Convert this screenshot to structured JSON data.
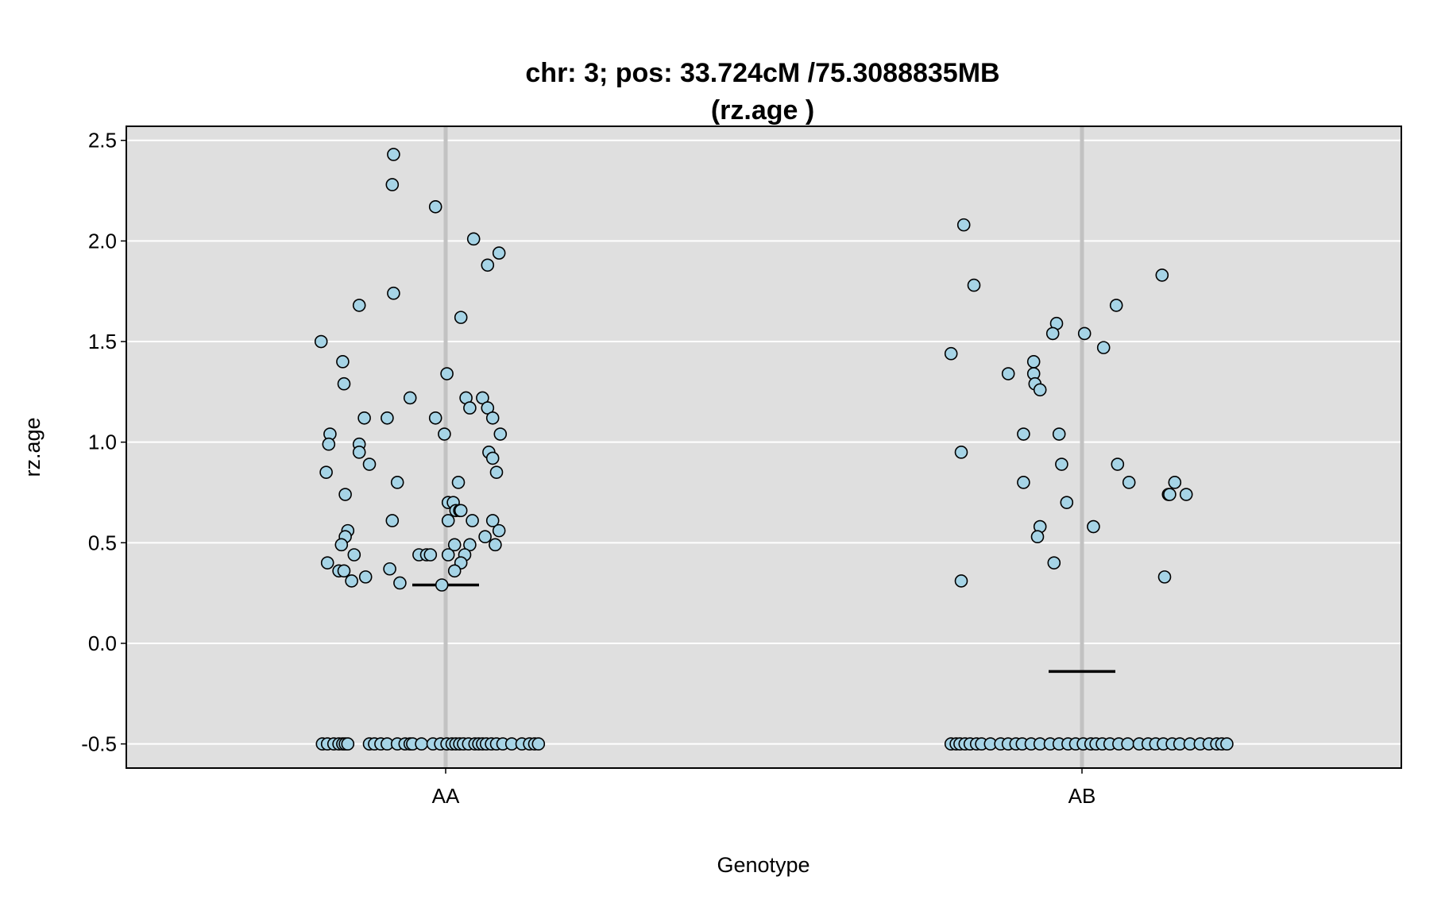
{
  "chart_data": {
    "type": "scatter",
    "title": "chr: 3; pos: 33.724cM /75.3088835MB",
    "subtitle": "(rz.age )",
    "xlabel": "Genotype",
    "ylabel": "rz.age",
    "categories": [
      "AA",
      "AB"
    ],
    "ylim": [
      -0.62,
      2.57
    ],
    "yticks": [
      -0.5,
      0.0,
      0.5,
      1.0,
      1.5,
      2.0,
      2.5
    ],
    "ytick_labels": [
      "-0.5",
      "0.0",
      "0.5",
      "1.0",
      "1.5",
      "2.0",
      "2.5"
    ],
    "grid": true,
    "colors": {
      "panel_background": "#dfdfdf",
      "gridline": "#ffffff",
      "category_line": "#c2c2c2",
      "point_fill": "#a6d4e6",
      "point_stroke": "#000000",
      "mean_line": "#000000"
    },
    "means": [
      0.29,
      -0.14
    ],
    "series": [
      {
        "category": "AA",
        "points": [
          [
            -0.41,
            2.43
          ],
          [
            -0.42,
            2.28
          ],
          [
            -0.08,
            2.17
          ],
          [
            0.22,
            2.01
          ],
          [
            0.42,
            1.94
          ],
          [
            0.33,
            1.88
          ],
          [
            -0.41,
            1.74
          ],
          [
            -0.68,
            1.68
          ],
          [
            0.12,
            1.62
          ],
          [
            -0.98,
            1.5
          ],
          [
            -0.81,
            1.4
          ],
          [
            0.01,
            1.34
          ],
          [
            -0.8,
            1.29
          ],
          [
            -0.28,
            1.22
          ],
          [
            0.16,
            1.22
          ],
          [
            0.29,
            1.22
          ],
          [
            0.33,
            1.17
          ],
          [
            0.19,
            1.17
          ],
          [
            -0.64,
            1.12
          ],
          [
            -0.46,
            1.12
          ],
          [
            -0.08,
            1.12
          ],
          [
            0.37,
            1.12
          ],
          [
            -0.91,
            1.04
          ],
          [
            -0.01,
            1.04
          ],
          [
            0.43,
            1.04
          ],
          [
            -0.92,
            0.99
          ],
          [
            -0.68,
            0.99
          ],
          [
            -0.68,
            0.95
          ],
          [
            0.34,
            0.95
          ],
          [
            0.37,
            0.92
          ],
          [
            -0.6,
            0.89
          ],
          [
            -0.94,
            0.85
          ],
          [
            0.4,
            0.85
          ],
          [
            -0.38,
            0.8
          ],
          [
            0.1,
            0.8
          ],
          [
            -0.79,
            0.74
          ],
          [
            0.02,
            0.7
          ],
          [
            0.06,
            0.7
          ],
          [
            0.08,
            0.66
          ],
          [
            0.11,
            0.66
          ],
          [
            0.12,
            0.66
          ],
          [
            -0.42,
            0.61
          ],
          [
            0.02,
            0.61
          ],
          [
            0.21,
            0.61
          ],
          [
            0.37,
            0.61
          ],
          [
            -0.77,
            0.56
          ],
          [
            0.42,
            0.56
          ],
          [
            -0.79,
            0.53
          ],
          [
            0.31,
            0.53
          ],
          [
            -0.82,
            0.49
          ],
          [
            0.07,
            0.49
          ],
          [
            0.19,
            0.49
          ],
          [
            0.39,
            0.49
          ],
          [
            -0.72,
            0.44
          ],
          [
            -0.21,
            0.44
          ],
          [
            -0.15,
            0.44
          ],
          [
            -0.12,
            0.44
          ],
          [
            0.02,
            0.44
          ],
          [
            0.15,
            0.44
          ],
          [
            -0.93,
            0.4
          ],
          [
            0.12,
            0.4
          ],
          [
            -0.44,
            0.37
          ],
          [
            -0.84,
            0.36
          ],
          [
            -0.8,
            0.36
          ],
          [
            0.07,
            0.36
          ],
          [
            -0.63,
            0.33
          ],
          [
            -0.74,
            0.31
          ],
          [
            -0.36,
            0.3
          ],
          [
            -0.03,
            0.29
          ],
          [
            -0.97,
            -0.5
          ],
          [
            -0.93,
            -0.5
          ],
          [
            -0.88,
            -0.5
          ],
          [
            -0.84,
            -0.5
          ],
          [
            -0.81,
            -0.5
          ],
          [
            -0.79,
            -0.5
          ],
          [
            -0.77,
            -0.5
          ],
          [
            -0.6,
            -0.5
          ],
          [
            -0.56,
            -0.5
          ],
          [
            -0.51,
            -0.5
          ],
          [
            -0.46,
            -0.5
          ],
          [
            -0.38,
            -0.5
          ],
          [
            -0.32,
            -0.5
          ],
          [
            -0.28,
            -0.5
          ],
          [
            -0.26,
            -0.5
          ],
          [
            -0.19,
            -0.5
          ],
          [
            -0.1,
            -0.5
          ],
          [
            -0.04,
            -0.5
          ],
          [
            0.01,
            -0.5
          ],
          [
            0.05,
            -0.5
          ],
          [
            0.08,
            -0.5
          ],
          [
            0.11,
            -0.5
          ],
          [
            0.14,
            -0.5
          ],
          [
            0.18,
            -0.5
          ],
          [
            0.23,
            -0.5
          ],
          [
            0.26,
            -0.5
          ],
          [
            0.29,
            -0.5
          ],
          [
            0.32,
            -0.5
          ],
          [
            0.36,
            -0.5
          ],
          [
            0.4,
            -0.5
          ],
          [
            0.45,
            -0.5
          ],
          [
            0.52,
            -0.5
          ],
          [
            0.6,
            -0.5
          ],
          [
            0.66,
            -0.5
          ],
          [
            0.7,
            -0.5
          ],
          [
            0.73,
            -0.5
          ]
        ]
      },
      {
        "category": "AB",
        "points": [
          [
            -0.93,
            2.08
          ],
          [
            -0.85,
            1.78
          ],
          [
            0.63,
            1.83
          ],
          [
            -0.2,
            1.59
          ],
          [
            -0.23,
            1.54
          ],
          [
            0.02,
            1.54
          ],
          [
            0.27,
            1.68
          ],
          [
            -1.03,
            1.44
          ],
          [
            0.17,
            1.47
          ],
          [
            -0.58,
            1.34
          ],
          [
            -0.38,
            1.4
          ],
          [
            -0.38,
            1.34
          ],
          [
            -0.37,
            1.29
          ],
          [
            -0.33,
            1.26
          ],
          [
            -0.46,
            1.04
          ],
          [
            -0.18,
            1.04
          ],
          [
            -0.95,
            0.95
          ],
          [
            -0.16,
            0.89
          ],
          [
            0.28,
            0.89
          ],
          [
            -0.46,
            0.8
          ],
          [
            0.37,
            0.8
          ],
          [
            0.73,
            0.8
          ],
          [
            0.68,
            0.74
          ],
          [
            0.82,
            0.74
          ],
          [
            0.69,
            0.74
          ],
          [
            -0.12,
            0.7
          ],
          [
            -0.33,
            0.58
          ],
          [
            0.09,
            0.58
          ],
          [
            -0.35,
            0.53
          ],
          [
            -0.22,
            0.4
          ],
          [
            0.65,
            0.33
          ],
          [
            -0.95,
            0.31
          ],
          [
            -1.03,
            -0.5
          ],
          [
            -0.99,
            -0.5
          ],
          [
            -0.96,
            -0.5
          ],
          [
            -0.92,
            -0.5
          ],
          [
            -0.88,
            -0.5
          ],
          [
            -0.83,
            -0.5
          ],
          [
            -0.79,
            -0.5
          ],
          [
            -0.72,
            -0.5
          ],
          [
            -0.64,
            -0.5
          ],
          [
            -0.58,
            -0.5
          ],
          [
            -0.52,
            -0.5
          ],
          [
            -0.47,
            -0.5
          ],
          [
            -0.4,
            -0.5
          ],
          [
            -0.33,
            -0.5
          ],
          [
            -0.25,
            -0.5
          ],
          [
            -0.18,
            -0.5
          ],
          [
            -0.11,
            -0.5
          ],
          [
            -0.05,
            -0.5
          ],
          [
            0.01,
            -0.5
          ],
          [
            0.07,
            -0.5
          ],
          [
            0.11,
            -0.5
          ],
          [
            0.16,
            -0.5
          ],
          [
            0.22,
            -0.5
          ],
          [
            0.29,
            -0.5
          ],
          [
            0.36,
            -0.5
          ],
          [
            0.45,
            -0.5
          ],
          [
            0.52,
            -0.5
          ],
          [
            0.58,
            -0.5
          ],
          [
            0.64,
            -0.5
          ],
          [
            0.71,
            -0.5
          ],
          [
            0.77,
            -0.5
          ],
          [
            0.85,
            -0.5
          ],
          [
            0.93,
            -0.5
          ],
          [
            1.0,
            -0.5
          ],
          [
            1.06,
            -0.5
          ],
          [
            1.1,
            -0.5
          ],
          [
            1.14,
            -0.5
          ]
        ]
      }
    ]
  }
}
